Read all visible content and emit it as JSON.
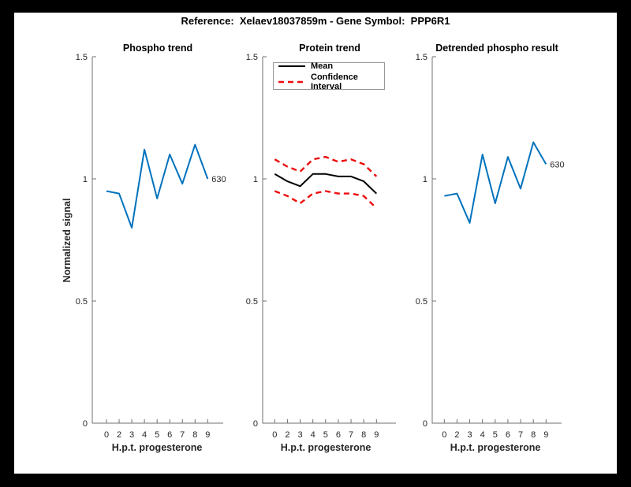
{
  "figure_title": "Reference:  Xelaev18037859m - Gene Symbol:  PPP6R1",
  "colors": {
    "frame_background": "#000000",
    "canvas_background": "#ffffff",
    "axis": "#707070",
    "tick_text": "#262626",
    "blue_line": "#0072BD",
    "red_dashed_line": "#EC0D0D",
    "black_line": "#000000"
  },
  "chart_data": [
    {
      "type": "line",
      "title": "Phospho trend",
      "xlabel": "H.p.t. progesterone",
      "ylabel": "Normalized signal",
      "ylim": [
        0,
        1.5
      ],
      "grid": false,
      "x_values": [
        0,
        2,
        3,
        4,
        5,
        6,
        7,
        8,
        9
      ],
      "x_tick_labels": [
        "0",
        "2",
        "3",
        "4",
        "5",
        "6",
        "7",
        "8",
        "9"
      ],
      "y_ticks": [
        0,
        0.5,
        1,
        1.5
      ],
      "y_tick_labels": [
        "0",
        "0.5",
        "1",
        "1.5"
      ],
      "series": [
        {
          "name": "phospho-630",
          "color": "#0072BD",
          "style": "solid",
          "values": [
            0.95,
            0.94,
            0.8,
            1.12,
            0.92,
            1.1,
            0.98,
            1.14,
            1.0
          ]
        }
      ],
      "end_label": "630"
    },
    {
      "type": "line",
      "title": "Protein trend",
      "xlabel": "H.p.t. progesterone",
      "ylabel": "",
      "ylim": [
        0,
        1.5
      ],
      "grid": false,
      "x_values": [
        0,
        2,
        3,
        4,
        5,
        6,
        7,
        8,
        9
      ],
      "x_tick_labels": [
        "0",
        "2",
        "3",
        "4",
        "5",
        "6",
        "7",
        "8",
        "9"
      ],
      "y_ticks": [
        0,
        0.5,
        1,
        1.5
      ],
      "y_tick_labels": [
        "0",
        "0.5",
        "1",
        "1.5"
      ],
      "legend": {
        "position": "northwest",
        "entries": [
          "Mean",
          "Confidence Interval"
        ]
      },
      "series": [
        {
          "name": "Mean",
          "color": "#000000",
          "style": "solid",
          "values": [
            1.02,
            0.99,
            0.97,
            1.02,
            1.02,
            1.01,
            1.01,
            0.99,
            0.94
          ]
        },
        {
          "name": "CI upper",
          "color": "#EC0D0D",
          "style": "dashed",
          "values": [
            1.08,
            1.05,
            1.03,
            1.08,
            1.09,
            1.07,
            1.08,
            1.06,
            1.01
          ]
        },
        {
          "name": "CI lower",
          "color": "#EC0D0D",
          "style": "dashed",
          "values": [
            0.95,
            0.93,
            0.9,
            0.94,
            0.95,
            0.94,
            0.94,
            0.93,
            0.88
          ]
        }
      ]
    },
    {
      "type": "line",
      "title": "Detrended phospho result",
      "xlabel": "H.p.t. progesterone",
      "ylabel": "",
      "ylim": [
        0,
        1.5
      ],
      "grid": false,
      "x_values": [
        0,
        2,
        3,
        4,
        5,
        6,
        7,
        8,
        9
      ],
      "x_tick_labels": [
        "0",
        "2",
        "3",
        "4",
        "5",
        "6",
        "7",
        "8",
        "9"
      ],
      "y_ticks": [
        0,
        0.5,
        1,
        1.5
      ],
      "y_tick_labels": [
        "0",
        "0.5",
        "1",
        "1.5"
      ],
      "series": [
        {
          "name": "detrended-630",
          "color": "#0072BD",
          "style": "solid",
          "values": [
            0.93,
            0.94,
            0.82,
            1.1,
            0.9,
            1.09,
            0.96,
            1.15,
            1.06
          ]
        }
      ],
      "end_label": "630"
    }
  ]
}
